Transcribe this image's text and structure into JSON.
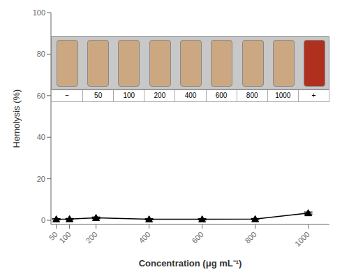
{
  "chart_data": {
    "type": "line",
    "x": [
      50,
      100,
      200,
      400,
      600,
      800,
      1000
    ],
    "values": [
      0.5,
      0.6,
      1.2,
      0.5,
      0.5,
      0.6,
      3.5
    ],
    "error": [
      0.3,
      0.3,
      0.4,
      0.3,
      0.3,
      0.3,
      0.5
    ],
    "xlim": [
      30,
      1080
    ],
    "xticks": [
      50,
      100,
      200,
      400,
      600,
      800,
      1000
    ],
    "ylim": [
      -2,
      100
    ],
    "yticks": [
      0,
      20,
      40,
      60,
      80,
      100
    ],
    "xlabel": "Concentration (μg mL⁻¹)",
    "ylabel": "Hemolysis (%)",
    "color": "#000000",
    "marker": "triangle",
    "grid": false,
    "annotations": [
      "−",
      "50",
      "100",
      "200",
      "400",
      "600",
      "800",
      "1000",
      "+"
    ]
  }
}
